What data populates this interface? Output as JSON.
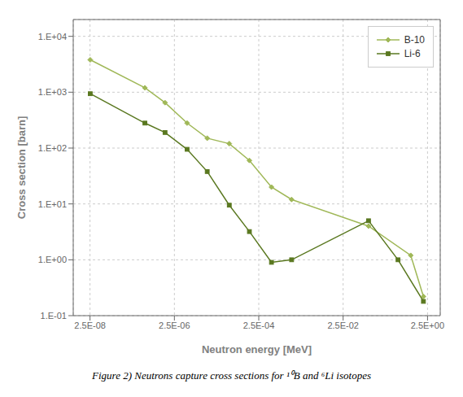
{
  "chart_data": {
    "type": "line",
    "log": true,
    "grid": true,
    "legend": "upper right",
    "xlabel": "Neutron energy [MeV]",
    "ylabel": "Cross section [barn]",
    "annotations": [
      "Figure 2) Neutrons capture cross sections for ¹⁰B and ⁶Li isotopes"
    ],
    "xlim": [
      1e-08,
      5.0
    ],
    "ylim": [
      0.1,
      20000
    ],
    "xticks": [
      {
        "value": 2.5e-08,
        "label": "2.5E-08"
      },
      {
        "value": 2.5e-06,
        "label": "2.5E-06"
      },
      {
        "value": 0.00025,
        "label": "2.5E-04"
      },
      {
        "value": 0.025,
        "label": "2.5E-02"
      },
      {
        "value": 2.5,
        "label": "2.5E+00"
      }
    ],
    "yticks": [
      {
        "value": 0.1,
        "label": "1.E-01"
      },
      {
        "value": 1.0,
        "label": "1.E+00"
      },
      {
        "value": 10.0,
        "label": "1.E+01"
      },
      {
        "value": 100.0,
        "label": "1.E+02"
      },
      {
        "value": 1000.0,
        "label": "1.E+03"
      },
      {
        "value": 10000.0,
        "label": "1.E+04"
      }
    ],
    "series": [
      {
        "name": "B-10",
        "color": "#a0b858",
        "marker": "diamond",
        "x": [
          2.53e-08,
          5e-07,
          1.5e-06,
          5e-06,
          1.5e-05,
          5e-05,
          0.00015,
          0.0005,
          0.0015,
          0.1,
          1.0,
          2.0
        ],
        "values": [
          3800,
          1200,
          650,
          280,
          150,
          120,
          60,
          20,
          12,
          4.0,
          1.2,
          0.22
        ]
      },
      {
        "name": "Li-6",
        "color": "#5a7820",
        "marker": "square",
        "x": [
          2.53e-08,
          5e-07,
          1.5e-06,
          5e-06,
          1.5e-05,
          5e-05,
          0.00015,
          0.0005,
          0.0015,
          0.1,
          0.5,
          2.0
        ],
        "values": [
          940,
          280,
          190,
          95,
          38,
          9.5,
          3.2,
          0.9,
          1.0,
          5.0,
          1.0,
          0.18
        ]
      }
    ]
  }
}
